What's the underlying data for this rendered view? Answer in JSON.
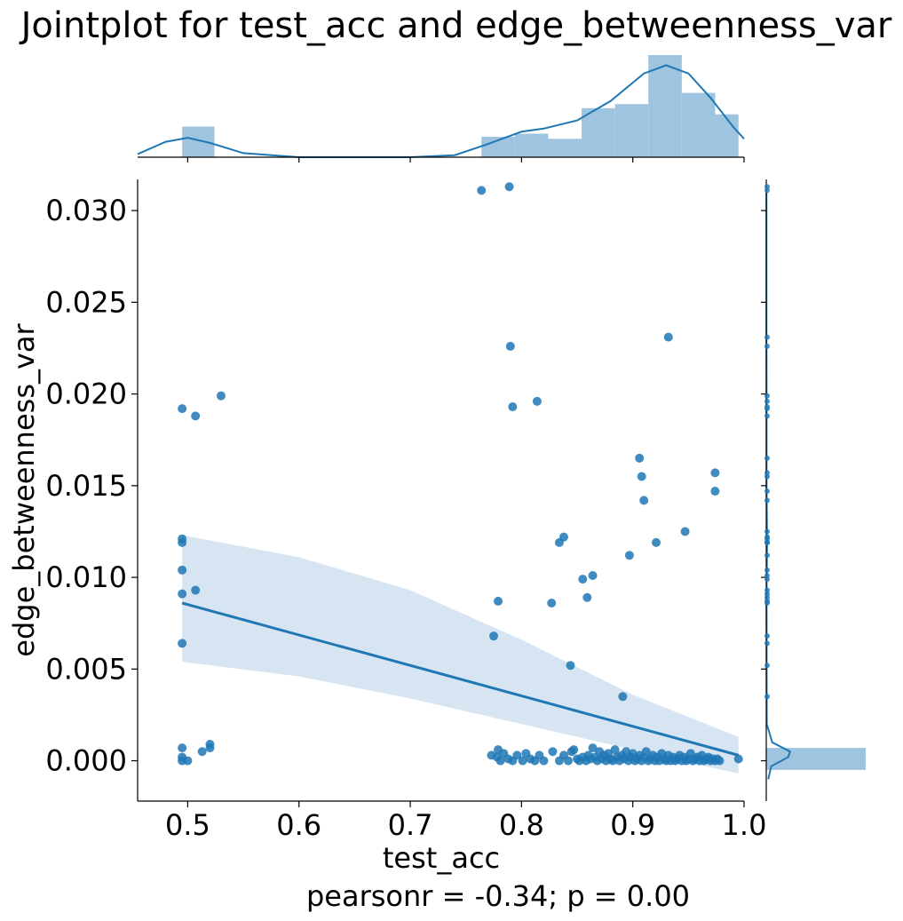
{
  "chart_data": {
    "type": "scatter",
    "title": "Jointplot for test_acc and edge_betweenness_var",
    "xlabel": "test_acc",
    "ylabel": "edge_betweenness_var",
    "annotation": "pearsonr = -0.34; p = 0.00",
    "xlim": [
      0.455,
      1.0
    ],
    "ylim": [
      -0.0022,
      0.0317
    ],
    "x_ticks": [
      0.5,
      0.6,
      0.7,
      0.8,
      0.9,
      1.0
    ],
    "x_tick_labels": [
      "0.5",
      "0.6",
      "0.7",
      "0.8",
      "0.9",
      "1.0"
    ],
    "y_ticks": [
      0.0,
      0.005,
      0.01,
      0.015,
      0.02,
      0.025,
      0.03
    ],
    "y_tick_labels": [
      "0.000",
      "0.005",
      "0.010",
      "0.015",
      "0.020",
      "0.025",
      "0.030"
    ],
    "grid": false,
    "colors": {
      "points": "#1f77b4",
      "hist": "#9ec4e0",
      "band": "#c9dcef"
    },
    "regression": {
      "x_range": [
        0.495,
        0.995
      ],
      "y_at_start": 0.0086,
      "y_at_end": 0.0003,
      "ci_lower": [
        [
          0.495,
          0.0054
        ],
        [
          0.6,
          0.0046
        ],
        [
          0.7,
          0.0034
        ],
        [
          0.8,
          0.002
        ],
        [
          0.9,
          0.0006
        ],
        [
          0.995,
          -0.0007
        ]
      ],
      "ci_upper": [
        [
          0.495,
          0.0123
        ],
        [
          0.6,
          0.0111
        ],
        [
          0.7,
          0.0093
        ],
        [
          0.8,
          0.0066
        ],
        [
          0.9,
          0.0036
        ],
        [
          0.995,
          0.0013
        ]
      ]
    },
    "points": [
      [
        0.764,
        0.0311
      ],
      [
        0.789,
        0.0313
      ],
      [
        0.79,
        0.0226
      ],
      [
        0.932,
        0.0231
      ],
      [
        0.495,
        0.0192
      ],
      [
        0.507,
        0.0188
      ],
      [
        0.53,
        0.0199
      ],
      [
        0.792,
        0.0193
      ],
      [
        0.814,
        0.0196
      ],
      [
        0.906,
        0.0165
      ],
      [
        0.908,
        0.0155
      ],
      [
        0.91,
        0.0142
      ],
      [
        0.974,
        0.0157
      ],
      [
        0.974,
        0.0147
      ],
      [
        0.495,
        0.0121
      ],
      [
        0.495,
        0.0119
      ],
      [
        0.495,
        0.0104
      ],
      [
        0.495,
        0.0091
      ],
      [
        0.495,
        0.0064
      ],
      [
        0.507,
        0.0093
      ],
      [
        0.838,
        0.0122
      ],
      [
        0.834,
        0.0119
      ],
      [
        0.921,
        0.0119
      ],
      [
        0.947,
        0.0125
      ],
      [
        0.897,
        0.0112
      ],
      [
        0.864,
        0.0101
      ],
      [
        0.855,
        0.0099
      ],
      [
        0.859,
        0.0089
      ],
      [
        0.779,
        0.0087
      ],
      [
        0.827,
        0.0086
      ],
      [
        0.775,
        0.0068
      ],
      [
        0.844,
        0.0052
      ],
      [
        0.891,
        0.0035
      ],
      [
        0.495,
        0.0007
      ],
      [
        0.495,
        0.0002
      ],
      [
        0.495,
        0.0
      ],
      [
        0.5,
        0.0
      ],
      [
        0.513,
        0.0005
      ],
      [
        0.52,
        0.0009
      ],
      [
        0.52,
        0.0007
      ],
      [
        0.773,
        0.0003
      ],
      [
        0.778,
        0.0002
      ],
      [
        0.779,
        0.0006
      ],
      [
        0.781,
        0.0
      ],
      [
        0.784,
        0.0004
      ],
      [
        0.788,
        0.0001
      ],
      [
        0.792,
        0.0
      ],
      [
        0.796,
        0.0003
      ],
      [
        0.801,
        0.0
      ],
      [
        0.804,
        0.0004
      ],
      [
        0.808,
        0.0001
      ],
      [
        0.812,
        0.0
      ],
      [
        0.816,
        0.0003
      ],
      [
        0.82,
        0.0
      ],
      [
        0.828,
        0.0005
      ],
      [
        0.834,
        0.0
      ],
      [
        0.838,
        0.0003
      ],
      [
        0.842,
        0.0
      ],
      [
        0.845,
        0.0005
      ],
      [
        0.847,
        0.0006
      ],
      [
        0.85,
        0.0001
      ],
      [
        0.852,
        0.0
      ],
      [
        0.855,
        0.0002
      ],
      [
        0.858,
        0.0
      ],
      [
        0.86,
        0.0003
      ],
      [
        0.862,
        0.0001
      ],
      [
        0.864,
        0.0007
      ],
      [
        0.866,
        0.0002
      ],
      [
        0.868,
        0.0
      ],
      [
        0.87,
        0.0005
      ],
      [
        0.872,
        0.0001
      ],
      [
        0.874,
        0.0003
      ],
      [
        0.876,
        0.0
      ],
      [
        0.878,
        0.0004
      ],
      [
        0.88,
        0.0001
      ],
      [
        0.882,
        0.0
      ],
      [
        0.884,
        0.0006
      ],
      [
        0.886,
        0.0002
      ],
      [
        0.888,
        0.0
      ],
      [
        0.89,
        0.0003
      ],
      [
        0.892,
        0.0001
      ],
      [
        0.894,
        0.0005
      ],
      [
        0.896,
        0.0
      ],
      [
        0.898,
        0.0002
      ],
      [
        0.9,
        0.0004
      ],
      [
        0.902,
        0.0
      ],
      [
        0.904,
        0.0001
      ],
      [
        0.906,
        0.0003
      ],
      [
        0.908,
        0.0
      ],
      [
        0.91,
        0.0002
      ],
      [
        0.912,
        0.0005
      ],
      [
        0.914,
        0.0
      ],
      [
        0.916,
        0.0001
      ],
      [
        0.918,
        0.0003
      ],
      [
        0.92,
        0.0
      ],
      [
        0.922,
        0.0002
      ],
      [
        0.924,
        0.0
      ],
      [
        0.926,
        0.0004
      ],
      [
        0.928,
        0.0001
      ],
      [
        0.93,
        0.0
      ],
      [
        0.932,
        0.0003
      ],
      [
        0.934,
        0.0
      ],
      [
        0.936,
        0.0002
      ],
      [
        0.938,
        0.0
      ],
      [
        0.94,
        0.0001
      ],
      [
        0.942,
        0.0003
      ],
      [
        0.944,
        0.0
      ],
      [
        0.946,
        0.0002
      ],
      [
        0.948,
        0.0
      ],
      [
        0.95,
        0.0001
      ],
      [
        0.952,
        0.0004
      ],
      [
        0.954,
        0.0
      ],
      [
        0.956,
        0.0001
      ],
      [
        0.958,
        0.0002
      ],
      [
        0.96,
        0.0
      ],
      [
        0.962,
        0.0003
      ],
      [
        0.964,
        0.0
      ],
      [
        0.966,
        0.0001
      ],
      [
        0.968,
        0.0002
      ],
      [
        0.97,
        0.0
      ],
      [
        0.972,
        0.0001
      ],
      [
        0.974,
        0.0
      ],
      [
        0.976,
        0.0001
      ],
      [
        0.978,
        0.0
      ],
      [
        0.995,
        0.0001
      ]
    ],
    "top_histogram": {
      "bin_edges": [
        0.495,
        0.524,
        0.554,
        0.584,
        0.614,
        0.644,
        0.674,
        0.704,
        0.734,
        0.764,
        0.794,
        0.824,
        0.854,
        0.884,
        0.914,
        0.944,
        0.974,
        0.995
      ],
      "heights": [
        0.3,
        0,
        0,
        0,
        0,
        0,
        0,
        0,
        0,
        0.2,
        0.23,
        0.18,
        0.48,
        0.52,
        1.0,
        0.63,
        0.42
      ],
      "kde_x": [
        0.455,
        0.48,
        0.5,
        0.52,
        0.55,
        0.6,
        0.65,
        0.7,
        0.74,
        0.77,
        0.8,
        0.82,
        0.85,
        0.88,
        0.91,
        0.93,
        0.95,
        0.97,
        0.99,
        1.0
      ],
      "kde_y": [
        0.03,
        0.15,
        0.19,
        0.14,
        0.04,
        0.0,
        0.0,
        0.0,
        0.02,
        0.13,
        0.25,
        0.28,
        0.36,
        0.55,
        0.82,
        0.9,
        0.82,
        0.58,
        0.3,
        0.18
      ]
    },
    "right_histogram": {
      "bin_edges": [
        -0.0005,
        0.0007,
        0.0031
      ],
      "widths": [
        1.0,
        0.0
      ],
      "kde_y": [
        -0.001,
        -0.0003,
        0.0002,
        0.0005,
        0.001,
        0.002,
        0.004,
        0.009,
        0.012,
        0.015,
        0.02,
        0.023,
        0.031
      ],
      "kde_w": [
        0.02,
        0.05,
        0.22,
        0.24,
        0.06,
        0.005,
        0.004,
        0.003,
        0.008,
        0.003,
        0.003,
        0.002,
        0.002
      ]
    }
  }
}
